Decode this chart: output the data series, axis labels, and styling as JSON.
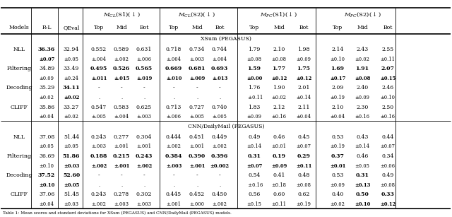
{
  "section1_title": "XSum (PEGASUS)",
  "section2_title": "CNN/DailyMail (PEGASUS)",
  "caption": "Table 1: Mean scores and standard deviations for XSum (PEGASUS) and CNN/DailyMail (PEGASUS) models.",
  "col_labels": [
    "Models",
    "R-L",
    "QEval",
    "Top",
    "Mid",
    "Bot",
    "Top",
    "Mid",
    "Bot",
    "Top",
    "Mid",
    "Bot",
    "Top",
    "Mid",
    "Bot"
  ],
  "group_labels": [
    "$M_{CL}$(S1)($\\downarrow$)",
    "$M_{CL}$(S2)($\\downarrow$)",
    "$M_{FC}$(S1)($\\downarrow$)",
    "$M_{FC}$(S2)($\\downarrow$)"
  ],
  "bold_map": {
    "NLL_xsum": [
      0
    ],
    "Filtering_xsum": [
      2,
      3,
      4,
      5,
      6,
      7,
      8,
      9,
      10,
      11,
      12,
      13
    ],
    "Decoding_xsum": [
      1
    ],
    "CLIFF_xsum": [],
    "NLL_cnn": [],
    "Filtering_cnn": [
      1,
      2,
      3,
      4,
      5,
      6,
      7,
      8,
      9,
      10,
      11
    ],
    "Decoding_cnn": [
      0,
      1,
      12
    ],
    "CLIFF_cnn": [
      12,
      13
    ]
  },
  "rows_xsum": [
    {
      "model": "NLL",
      "values": [
        "36.36",
        "32.94",
        "0.552",
        "0.589",
        "0.631",
        "0.718",
        "0.734",
        "0.744",
        "1.79",
        "2.10",
        "1.98",
        "2.14",
        "2.43",
        "2.55"
      ],
      "errs": [
        "±0.07",
        "±0.05",
        "±.004",
        "±.002",
        "±.006",
        "±.004",
        "±.003",
        "±.004",
        "±0.08",
        "±0.08",
        "±0.09",
        "±0.10",
        "±0.02",
        "±0.11"
      ]
    },
    {
      "model": "Filtering",
      "values": [
        "34.89",
        "33.49",
        "0.495",
        "0.526",
        "0.565",
        "0.669",
        "0.681",
        "0.693",
        "1.59",
        "1.77",
        "1.75",
        "1.69",
        "1.91",
        "2.07"
      ],
      "errs": [
        "±0.09",
        "±0.24",
        "±.011",
        "±.015",
        "±.019",
        "±.010",
        "±.009",
        "±.013",
        "±0.00",
        "±0.12",
        "±0.12",
        "±0.17",
        "±0.08",
        "±0.15"
      ]
    },
    {
      "model": "Decoding",
      "values": [
        "35.29",
        "34.11",
        "-",
        "-",
        "-",
        "-",
        "-",
        "-",
        "1.76",
        "1.90",
        "2.01",
        "2.09",
        "2.40",
        "2.46"
      ],
      "errs": [
        "±0.02",
        "±0.02",
        ".",
        ".",
        ".",
        ".",
        ".",
        ".",
        "  ±0.11",
        "±0.02",
        "±0.14",
        "±0.19",
        "±0.09",
        "±0.10"
      ]
    },
    {
      "model": "CLIFF",
      "values": [
        "35.86",
        "33.27",
        "0.547",
        "0.583",
        "0.625",
        "0.713",
        "0.727",
        "0.740",
        "1.83",
        "2.12",
        "2.11",
        "2.10",
        "2.30",
        "2.50"
      ],
      "errs": [
        "±0.04",
        "±0.02",
        "±.005",
        "±.004",
        "±.003",
        "±.006",
        "±.005",
        "±.005",
        "±0.09",
        "±0.16",
        "±0.04",
        "±0.04",
        "±0.16",
        "±0.16"
      ]
    }
  ],
  "rows_cnn": [
    {
      "model": "NLL",
      "values": [
        "37.08",
        "51.44",
        "0.243",
        "0.277",
        "0.304",
        "0.444",
        "0.451",
        "0.449",
        "0.49",
        "0.46",
        "0.45",
        "0.53",
        "0.43",
        "0.44"
      ],
      "errs": [
        "±0.05",
        "±0.05",
        "±.003",
        "±.001",
        "±.001",
        "±.002",
        "±.001",
        "±.002",
        "±0.14",
        "±0.01",
        "±0.07",
        "±0.19",
        "±0.14",
        "±0.07"
      ]
    },
    {
      "model": "Filtering",
      "values": [
        "36.69",
        "51.86",
        "0.188",
        "0.215",
        "0.243",
        "0.384",
        "0.390",
        "0.396",
        "0.31",
        "0.19",
        "0.29",
        "0.37",
        "0.46",
        "0.34"
      ],
      "errs": [
        "±0.10",
        "±0.03",
        "±.002",
        "±.001",
        "±.002",
        "±.003",
        "±.001",
        "±0.002",
        "±0.07",
        "±0.09",
        "±0.11",
        "±0.01",
        "±0.05",
        "±0.06"
      ]
    },
    {
      "model": "Decoding",
      "values": [
        "37.52",
        "52.60",
        "-",
        "-",
        "-",
        "-",
        "-",
        "-",
        "0.54",
        "0.41",
        "0.48",
        "0.53",
        "0.31",
        "0.49"
      ],
      "errs": [
        "±0.10",
        "±0.05",
        ".",
        ".",
        ".",
        ".",
        ".",
        ".",
        "  ±0.16",
        "±0.18",
        "±0.08",
        "±0.09",
        "±0.13",
        "±0.08"
      ]
    },
    {
      "model": "CLIFF",
      "values": [
        "37.06",
        "51.45",
        "0.243",
        "0.278",
        "0.302",
        "0.445",
        "0.452",
        "0.450",
        "0.56",
        "0.60",
        "0.62",
        "0.40",
        "0.50",
        "0.33"
      ],
      "errs": [
        "±0.04",
        "±0.03",
        "±.002",
        "±.003",
        "±.003",
        "±.001",
        "±.000",
        "±.002",
        "±0.15",
        "±0.11",
        "±0.19",
        "±0.02",
        "±0.10",
        "±0.12"
      ]
    }
  ]
}
